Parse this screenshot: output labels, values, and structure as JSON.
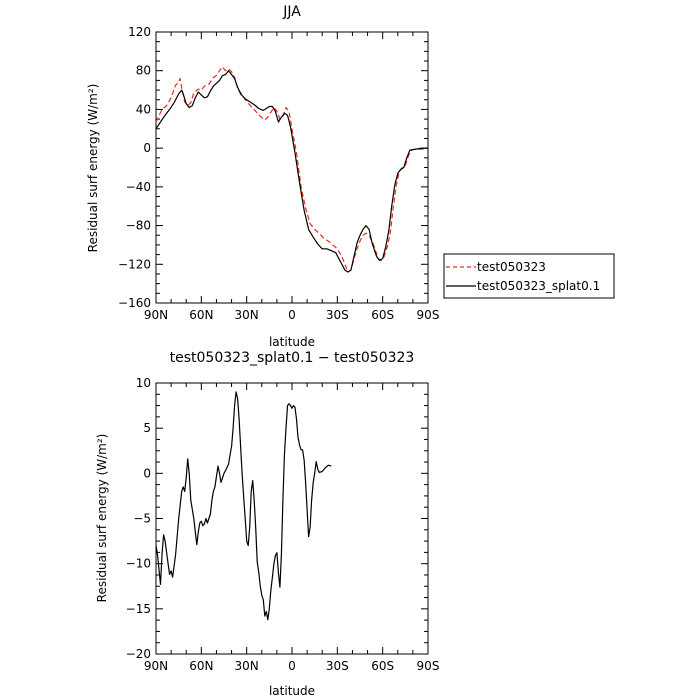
{
  "chart_data": [
    {
      "type": "line",
      "title": "JJA",
      "xlabel": "latitude",
      "ylabel": "Residual surf energy (W/m²)",
      "xlim": [
        90,
        -90
      ],
      "ylim": [
        -160,
        120
      ],
      "x_ticks": [
        90,
        60,
        30,
        0,
        -30,
        -60,
        -90
      ],
      "x_tick_labels": [
        "90N",
        "60N",
        "30N",
        "0",
        "30S",
        "60S",
        "90S"
      ],
      "y_ticks": [
        -160,
        -120,
        -80,
        -40,
        0,
        40,
        80,
        120
      ],
      "y_tick_labels": [
        "−160",
        "−120",
        "−80",
        "−40",
        "0",
        "40",
        "80",
        "120"
      ],
      "legend_position": "right",
      "series": [
        {
          "name": "test050323",
          "color": "#e8271f",
          "dash": "dashed",
          "points": [
            [
              90,
              27
            ],
            [
              86,
              40
            ],
            [
              83,
              44
            ],
            [
              80,
              52
            ],
            [
              77,
              65
            ],
            [
              75,
              68
            ],
            [
              74,
              72
            ],
            [
              73,
              62
            ],
            [
              71,
              48
            ],
            [
              69,
              44
            ],
            [
              67,
              47
            ],
            [
              65,
              57
            ],
            [
              62,
              61
            ],
            [
              60,
              60
            ],
            [
              58,
              64
            ],
            [
              55,
              66
            ],
            [
              52,
              73
            ],
            [
              50,
              75
            ],
            [
              48,
              80
            ],
            [
              46,
              84
            ],
            [
              44,
              80
            ],
            [
              42,
              82
            ],
            [
              40,
              79
            ],
            [
              38,
              73
            ],
            [
              36,
              62
            ],
            [
              33,
              55
            ],
            [
              30,
              48
            ],
            [
              27,
              43
            ],
            [
              24,
              38
            ],
            [
              21,
              33
            ],
            [
              18,
              29
            ],
            [
              16,
              32
            ],
            [
              14,
              37
            ],
            [
              12,
              42
            ],
            [
              10,
              38
            ],
            [
              8,
              30
            ],
            [
              6,
              33
            ],
            [
              4,
              42
            ],
            [
              2,
              38
            ],
            [
              0,
              20
            ],
            [
              -3,
              -5
            ],
            [
              -6,
              -40
            ],
            [
              -9,
              -62
            ],
            [
              -12,
              -78
            ],
            [
              -15,
              -84
            ],
            [
              -18,
              -88
            ],
            [
              -21,
              -93
            ],
            [
              -24,
              -96
            ],
            [
              -27,
              -100
            ],
            [
              -30,
              -104
            ],
            [
              -33,
              -112
            ],
            [
              -35,
              -120
            ],
            [
              -37,
              -128
            ],
            [
              -39,
              -126
            ],
            [
              -41,
              -114
            ],
            [
              -43,
              -104
            ],
            [
              -45,
              -96
            ],
            [
              -47,
              -90
            ],
            [
              -49,
              -88
            ],
            [
              -51,
              -90
            ],
            [
              -54,
              -100
            ],
            [
              -57,
              -114
            ],
            [
              -59,
              -116
            ],
            [
              -61,
              -112
            ],
            [
              -63,
              -102
            ],
            [
              -65,
              -88
            ],
            [
              -67,
              -62
            ],
            [
              -69,
              -38
            ],
            [
              -71,
              -24
            ],
            [
              -73,
              -20
            ],
            [
              -75,
              -18
            ],
            [
              -77,
              -8
            ],
            [
              -79,
              -2
            ],
            [
              -82,
              -1
            ],
            [
              -85,
              -1
            ],
            [
              -88,
              -1
            ],
            [
              -90,
              0
            ]
          ]
        },
        {
          "name": "test050323_splat0.1",
          "color": "#000000",
          "dash": "solid",
          "points": [
            [
              90,
              20
            ],
            [
              87,
              27
            ],
            [
              84,
              34
            ],
            [
              81,
              40
            ],
            [
              78,
              47
            ],
            [
              75,
              56
            ],
            [
              73,
              60
            ],
            [
              72,
              56
            ],
            [
              70,
              46
            ],
            [
              68,
              42
            ],
            [
              66,
              44
            ],
            [
              64,
              52
            ],
            [
              62,
              58
            ],
            [
              60,
              55
            ],
            [
              58,
              52
            ],
            [
              56,
              53
            ],
            [
              54,
              59
            ],
            [
              52,
              64
            ],
            [
              50,
              67
            ],
            [
              48,
              70
            ],
            [
              46,
              75
            ],
            [
              44,
              76
            ],
            [
              42,
              80
            ],
            [
              40,
              76
            ],
            [
              38,
              72
            ],
            [
              36,
              63
            ],
            [
              34,
              56
            ],
            [
              31,
              51
            ],
            [
              28,
              48
            ],
            [
              25,
              45
            ],
            [
              22,
              41
            ],
            [
              19,
              39
            ],
            [
              17,
              41
            ],
            [
              15,
              43
            ],
            [
              13,
              43
            ],
            [
              11,
              38
            ],
            [
              9,
              27
            ],
            [
              7,
              32
            ],
            [
              5,
              36
            ],
            [
              3,
              34
            ],
            [
              1,
              22
            ],
            [
              -2,
              -5
            ],
            [
              -5,
              -36
            ],
            [
              -8,
              -64
            ],
            [
              -11,
              -84
            ],
            [
              -14,
              -92
            ],
            [
              -17,
              -99
            ],
            [
              -20,
              -104
            ],
            [
              -23,
              -104
            ],
            [
              -26,
              -106
            ],
            [
              -29,
              -108
            ],
            [
              -31,
              -114
            ],
            [
              -33,
              -120
            ],
            [
              -35,
              -126
            ],
            [
              -37,
              -128
            ],
            [
              -39,
              -126
            ],
            [
              -41,
              -112
            ],
            [
              -43,
              -98
            ],
            [
              -45,
              -90
            ],
            [
              -47,
              -84
            ],
            [
              -49,
              -80
            ],
            [
              -51,
              -84
            ],
            [
              -53,
              -98
            ],
            [
              -56,
              -112
            ],
            [
              -58,
              -116
            ],
            [
              -60,
              -114
            ],
            [
              -62,
              -102
            ],
            [
              -64,
              -86
            ],
            [
              -66,
              -60
            ],
            [
              -68,
              -38
            ],
            [
              -70,
              -26
            ],
            [
              -72,
              -22
            ],
            [
              -74,
              -20
            ],
            [
              -76,
              -10
            ],
            [
              -78,
              -2
            ],
            [
              -82,
              -1
            ],
            [
              -86,
              0
            ],
            [
              -90,
              0
            ]
          ]
        }
      ]
    },
    {
      "type": "line",
      "title": "test050323_splat0.1 − test050323",
      "xlabel": "latitude",
      "ylabel": "Residual surf energy (W/m²)",
      "xlim": [
        90,
        -90
      ],
      "ylim": [
        -20,
        10
      ],
      "x_ticks": [
        90,
        60,
        30,
        0,
        -30,
        -60,
        -90
      ],
      "x_tick_labels": [
        "90N",
        "60N",
        "30N",
        "0",
        "30S",
        "60S",
        "90S"
      ],
      "y_ticks": [
        -20,
        -15,
        -10,
        -5,
        0,
        5,
        10
      ],
      "y_tick_labels": [
        "−20",
        "−15",
        "−10",
        "−5",
        "0",
        "5",
        "10"
      ],
      "series": [
        {
          "color": "#000000",
          "points": [
            [
              90,
              -8
            ],
            [
              89,
              -9
            ],
            [
              87,
              -12.3
            ],
            [
              86,
              -9
            ],
            [
              85,
              -6.8
            ],
            [
              84,
              -7.5
            ],
            [
              82,
              -10
            ],
            [
              81,
              -11.2
            ],
            [
              80,
              -10.8
            ],
            [
              79,
              -11.5
            ],
            [
              77,
              -9
            ],
            [
              75,
              -5
            ],
            [
              73,
              -2
            ],
            [
              72,
              -1.5
            ],
            [
              71,
              -2
            ],
            [
              70,
              -0.5
            ],
            [
              69,
              1.6
            ],
            [
              68,
              0
            ],
            [
              67,
              -3
            ],
            [
              65,
              -5
            ],
            [
              64,
              -6.5
            ],
            [
              63,
              -7.9
            ],
            [
              62,
              -6.5
            ],
            [
              61,
              -5.5
            ],
            [
              60,
              -5.3
            ],
            [
              59,
              -5.8
            ],
            [
              58,
              -5.6
            ],
            [
              57,
              -5
            ],
            [
              56,
              -5.5
            ],
            [
              55,
              -5
            ],
            [
              54,
              -4.5
            ],
            [
              53,
              -3
            ],
            [
              52,
              -2
            ],
            [
              51,
              -1.5
            ],
            [
              49,
              0.8
            ],
            [
              48,
              0
            ],
            [
              47,
              -1
            ],
            [
              46,
              -0.5
            ],
            [
              45,
              0
            ],
            [
              44,
              0.3
            ],
            [
              42,
              1
            ],
            [
              41,
              2
            ],
            [
              40,
              3
            ],
            [
              39,
              5
            ],
            [
              38,
              7.5
            ],
            [
              37,
              9
            ],
            [
              36,
              8.3
            ],
            [
              35,
              6
            ],
            [
              34,
              3
            ],
            [
              33,
              0
            ],
            [
              32,
              -2.5
            ],
            [
              31,
              -5
            ],
            [
              30,
              -7.5
            ],
            [
              29,
              -8
            ],
            [
              28,
              -6
            ],
            [
              27,
              -2
            ],
            [
              26,
              -0.8
            ],
            [
              25,
              -3
            ],
            [
              24,
              -6
            ],
            [
              23,
              -9.8
            ],
            [
              22,
              -11
            ],
            [
              21,
              -12.5
            ],
            [
              20,
              -13.5
            ],
            [
              19,
              -14
            ],
            [
              18,
              -15.8
            ],
            [
              17,
              -15.3
            ],
            [
              16,
              -16.2
            ],
            [
              15,
              -15
            ],
            [
              14,
              -13
            ],
            [
              13,
              -11.5
            ],
            [
              12,
              -10
            ],
            [
              11,
              -9.1
            ],
            [
              10,
              -8.8
            ],
            [
              9,
              -11
            ],
            [
              8,
              -12.6
            ],
            [
              7,
              -9
            ],
            [
              6,
              -3
            ],
            [
              5,
              2
            ],
            [
              4,
              5
            ],
            [
              3,
              7.5
            ],
            [
              2,
              7.7
            ],
            [
              1,
              7.5
            ],
            [
              0,
              7.2
            ],
            [
              -1,
              7.5
            ],
            [
              -2,
              7.3
            ],
            [
              -3,
              6
            ],
            [
              -4,
              4
            ],
            [
              -5,
              3.1
            ],
            [
              -6,
              2.6
            ],
            [
              -7,
              2.6
            ],
            [
              -8,
              1.5
            ],
            [
              -9,
              -1
            ],
            [
              -10,
              -4
            ],
            [
              -11,
              -7
            ],
            [
              -12,
              -6
            ],
            [
              -13,
              -3
            ],
            [
              -14,
              -1
            ],
            [
              -15,
              0
            ],
            [
              -16,
              1.3
            ],
            [
              -17,
              0.5
            ],
            [
              -18,
              0.1
            ],
            [
              -20,
              0.2
            ],
            [
              -22,
              0.6
            ],
            [
              -24,
              0.9
            ],
            [
              -26,
              0.8
            ]
          ]
        }
      ]
    }
  ]
}
